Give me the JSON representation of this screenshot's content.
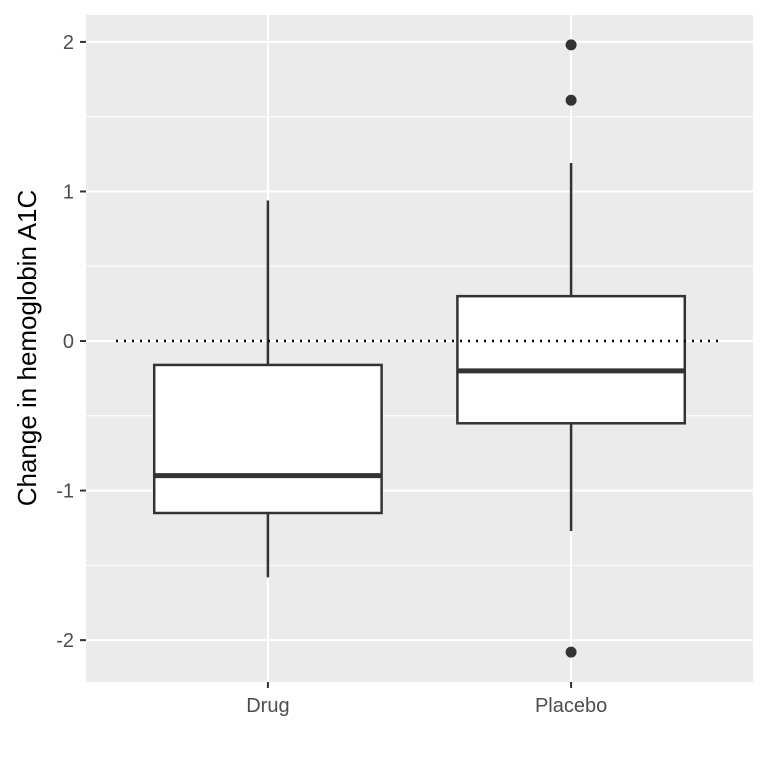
{
  "chart_data": {
    "type": "boxplot",
    "ylabel": "Change in hemoglobin A1C",
    "xlabel": "",
    "ylim": [
      -2.28,
      2.18
    ],
    "yticks": [
      "-2",
      "-1",
      "0",
      "1",
      "2"
    ],
    "y_tick_values": [
      -2,
      -1,
      0,
      1,
      2
    ],
    "categories": [
      "Drug",
      "Placebo"
    ],
    "reference_line": {
      "y": 0,
      "style": "dotted"
    },
    "grid": true,
    "colors": {
      "panel": "#ebebeb",
      "grid": "#ffffff",
      "box_fill": "#ffffff",
      "box_stroke": "#333333",
      "reference_line": "#000000"
    },
    "boxes": [
      {
        "category": "Drug",
        "lower_whisker": -1.58,
        "q1": -1.15,
        "median": -0.9,
        "q3": -0.16,
        "upper_whisker": 0.94,
        "outliers": []
      },
      {
        "category": "Placebo",
        "lower_whisker": -1.27,
        "q1": -0.55,
        "median": -0.2,
        "q3": 0.3,
        "upper_whisker": 1.19,
        "outliers": [
          1.98,
          1.61,
          -2.08
        ]
      }
    ]
  }
}
